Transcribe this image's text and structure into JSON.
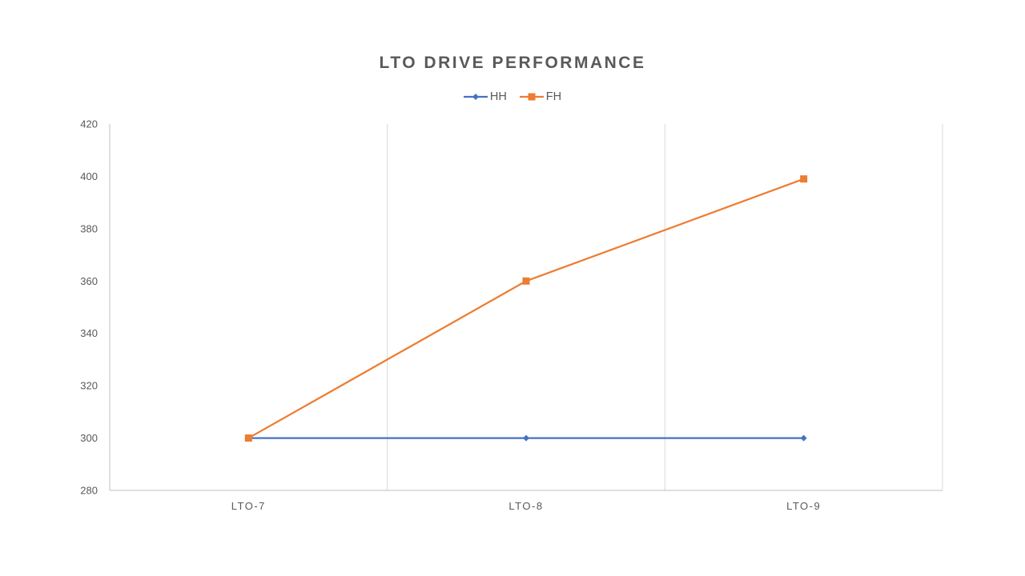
{
  "chart_data": {
    "type": "line",
    "title": "LTO DRIVE PERFORMANCE",
    "categories": [
      "LTO-7",
      "LTO-8",
      "LTO-9"
    ],
    "series": [
      {
        "name": "HH",
        "values": [
          300,
          300,
          300
        ],
        "color": "#4472C4",
        "marker": "diamond"
      },
      {
        "name": "FH",
        "values": [
          300,
          360,
          399
        ],
        "color": "#ED7D31",
        "marker": "square"
      }
    ],
    "ylim": [
      280,
      420
    ],
    "yticks": [
      280,
      300,
      320,
      340,
      360,
      380,
      400,
      420
    ],
    "xlabel": "",
    "ylabel": "",
    "legend_position": "top",
    "grid": "vertical-category-boundaries-only",
    "colors": {
      "title": "#595959",
      "axis_labels": "#595959",
      "axis_line": "#BFBFBF",
      "gridline": "#D9D9D9",
      "background": "#FFFFFF"
    }
  }
}
